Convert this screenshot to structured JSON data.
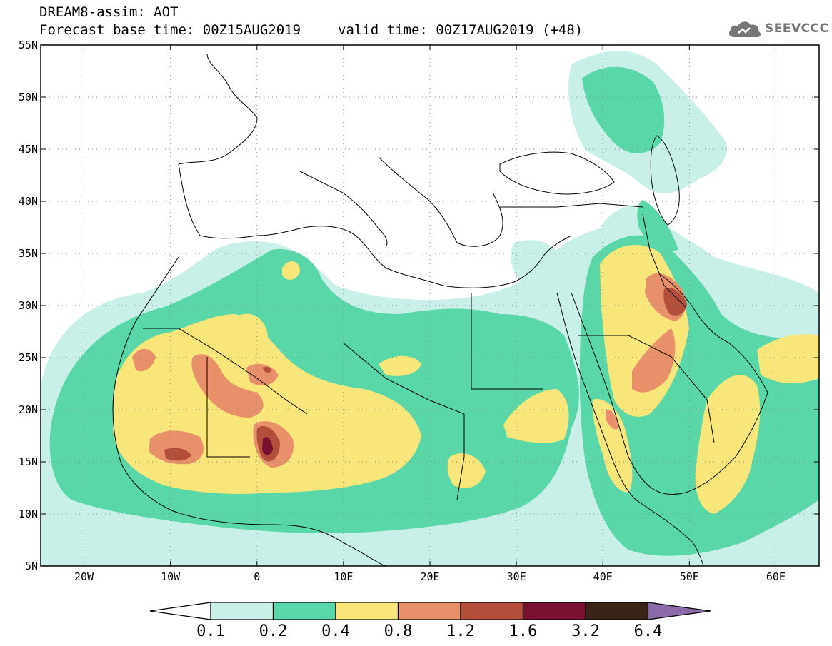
{
  "header": {
    "title_line1": "DREAM8-assim: AOT",
    "base_time": "Forecast base time: 00Z15AUG2019",
    "valid_time": "valid time: 00Z17AUG2019 (+48)",
    "logo_text": "SEEVCCC",
    "logo_icon": "cloud-logo-icon"
  },
  "map": {
    "lon_range": [
      -25,
      65
    ],
    "lat_range": [
      5,
      55
    ],
    "lon_ticks": [
      {
        "value": -20,
        "label": "20W"
      },
      {
        "value": -10,
        "label": "10W"
      },
      {
        "value": 0,
        "label": "0"
      },
      {
        "value": 10,
        "label": "10E"
      },
      {
        "value": 20,
        "label": "20E"
      },
      {
        "value": 30,
        "label": "30E"
      },
      {
        "value": 40,
        "label": "40E"
      },
      {
        "value": 50,
        "label": "50E"
      },
      {
        "value": 60,
        "label": "60E"
      }
    ],
    "lat_ticks": [
      {
        "value": 55,
        "label": "55N"
      },
      {
        "value": 50,
        "label": "50N"
      },
      {
        "value": 45,
        "label": "45N"
      },
      {
        "value": 40,
        "label": "40N"
      },
      {
        "value": 35,
        "label": "35N"
      },
      {
        "value": 30,
        "label": "30N"
      },
      {
        "value": 25,
        "label": "25N"
      },
      {
        "value": 20,
        "label": "20N"
      },
      {
        "value": 15,
        "label": "15N"
      },
      {
        "value": 10,
        "label": "10N"
      },
      {
        "value": 5,
        "label": "5N"
      }
    ],
    "grid": "dotted"
  },
  "colorbar": {
    "labels": [
      "0.1",
      "0.2",
      "0.4",
      "0.8",
      "1.2",
      "1.6",
      "3.2",
      "6.4"
    ],
    "colors": [
      "#c8f0e8",
      "#5ad7a8",
      "#f8e67a",
      "#e8906a",
      "#b24e3a",
      "#7a1030",
      "#3a2418"
    ],
    "under_color": "#ffffff",
    "over_color": "#8a6aa8"
  },
  "levels": {
    "c1": "#c8f0e8",
    "c2": "#5ad7a8",
    "c3": "#f8e67a",
    "c4": "#e8906a",
    "c5": "#b24e3a",
    "c6": "#7a1030"
  }
}
